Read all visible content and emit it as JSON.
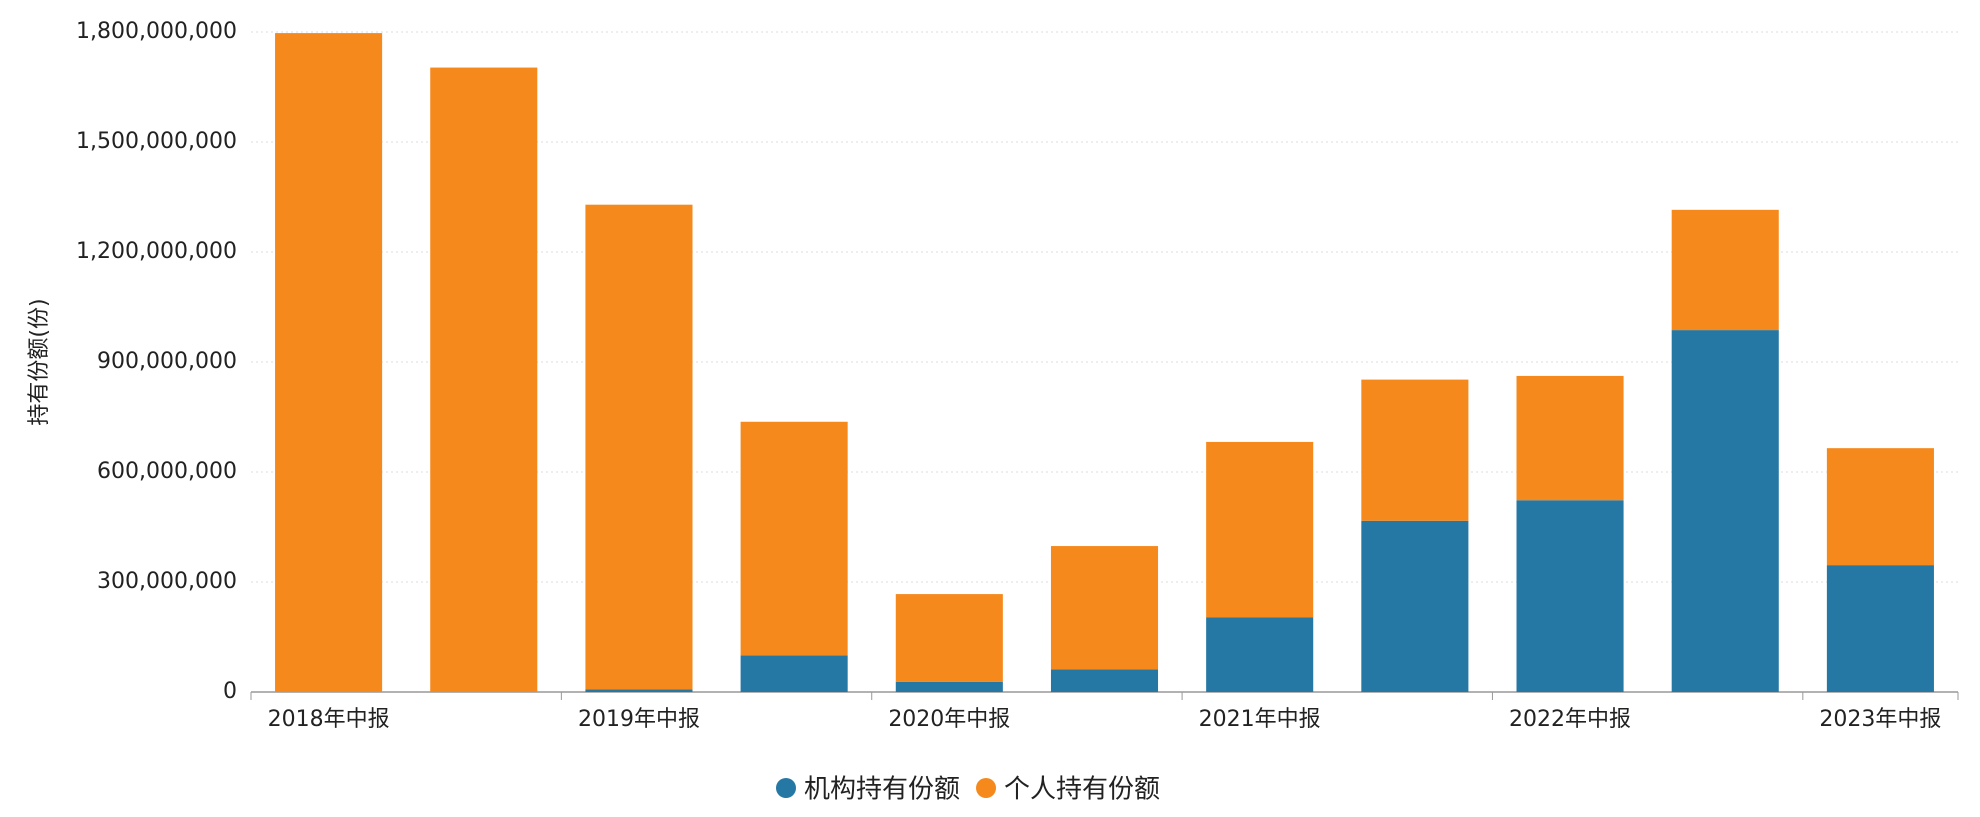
{
  "chart_data": {
    "type": "stacked-bar",
    "ylabel": "持有份额(份)",
    "categories": [
      "2018年中报",
      null,
      "2019年中报",
      null,
      "2020年中报",
      null,
      "2021年中报",
      null,
      "2022年中报",
      null,
      "2023年中报"
    ],
    "series": [
      {
        "name": "机构持有份额",
        "color": "#2577a4",
        "values": [
          0,
          0,
          7000000,
          100000000,
          28000000,
          62000000,
          204000000,
          467000000,
          523000000,
          987000000,
          346000000
        ]
      },
      {
        "name": "个人持有份额",
        "color": "#f5891c",
        "values": [
          1797000000,
          1703000000,
          1322000000,
          637000000,
          239000000,
          336000000,
          478000000,
          385000000,
          339000000,
          328000000,
          319000000
        ]
      }
    ],
    "ylim": [
      0,
      1800000000
    ],
    "yticks": [
      0,
      {
        "value": 300000000,
        "label": "300,000,000"
      },
      {
        "value": 600000000,
        "label": "600,000,000"
      },
      {
        "value": 900000000,
        "label": "900,000,000"
      },
      {
        "value": 1200000000,
        "label": "1,200,000,000"
      },
      {
        "value": 1500000000,
        "label": "1,500,000,000"
      },
      {
        "value": 1800000000,
        "label": "1,800,000,000"
      }
    ],
    "grid": true
  }
}
